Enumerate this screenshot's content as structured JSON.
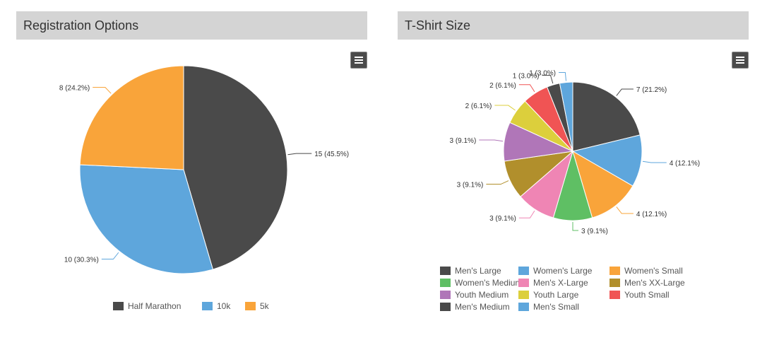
{
  "colors": {
    "header_bg": "#d4d4d4",
    "menu_button": "#4a4a4a"
  },
  "menu_icon": "hamburger-menu-icon",
  "chart_data": [
    {
      "type": "pie",
      "title": "Registration Options",
      "legend_placement": "bottom",
      "slices": [
        {
          "name": "Half Marathon",
          "value": 15,
          "label": "15 (45.5%)",
          "color": "#4a4a4a"
        },
        {
          "name": "10k",
          "value": 10,
          "label": "10 (30.3%)",
          "color": "#5ea6dc"
        },
        {
          "name": "5k",
          "value": 8,
          "label": "8 (24.2%)",
          "color": "#f9a43a"
        }
      ]
    },
    {
      "type": "pie",
      "title": "T-Shirt Size",
      "legend_placement": "bottom",
      "slices": [
        {
          "name": "Men's Large",
          "value": 7,
          "label": "7 (21.2%)",
          "color": "#4a4a4a"
        },
        {
          "name": "Women's Large",
          "value": 4,
          "label": "4 (12.1%)",
          "color": "#5ea6dc"
        },
        {
          "name": "Women's Small",
          "value": 4,
          "label": "4 (12.1%)",
          "color": "#f9a43a"
        },
        {
          "name": "Women's Medium",
          "value": 3,
          "label": "3 (9.1%)",
          "color": "#5fbf64"
        },
        {
          "name": "Men's X-Large",
          "value": 3,
          "label": "3 (9.1%)",
          "color": "#ef85b4"
        },
        {
          "name": "Men's XX-Large",
          "value": 3,
          "label": "3 (9.1%)",
          "color": "#b18f2c"
        },
        {
          "name": "Youth Medium",
          "value": 3,
          "label": "3 (9.1%)",
          "color": "#b076b8"
        },
        {
          "name": "Youth Large",
          "value": 2,
          "label": "2 (6.1%)",
          "color": "#dccf3c"
        },
        {
          "name": "Youth Small",
          "value": 2,
          "label": "2 (6.1%)",
          "color": "#f05454"
        },
        {
          "name": "Men's Medium",
          "value": 1,
          "label": "1 (3.0%)",
          "color": "#4a4a4a"
        },
        {
          "name": "Men's Small",
          "value": 1,
          "label": "1 (3.0%)",
          "color": "#5ea6dc"
        }
      ]
    }
  ]
}
